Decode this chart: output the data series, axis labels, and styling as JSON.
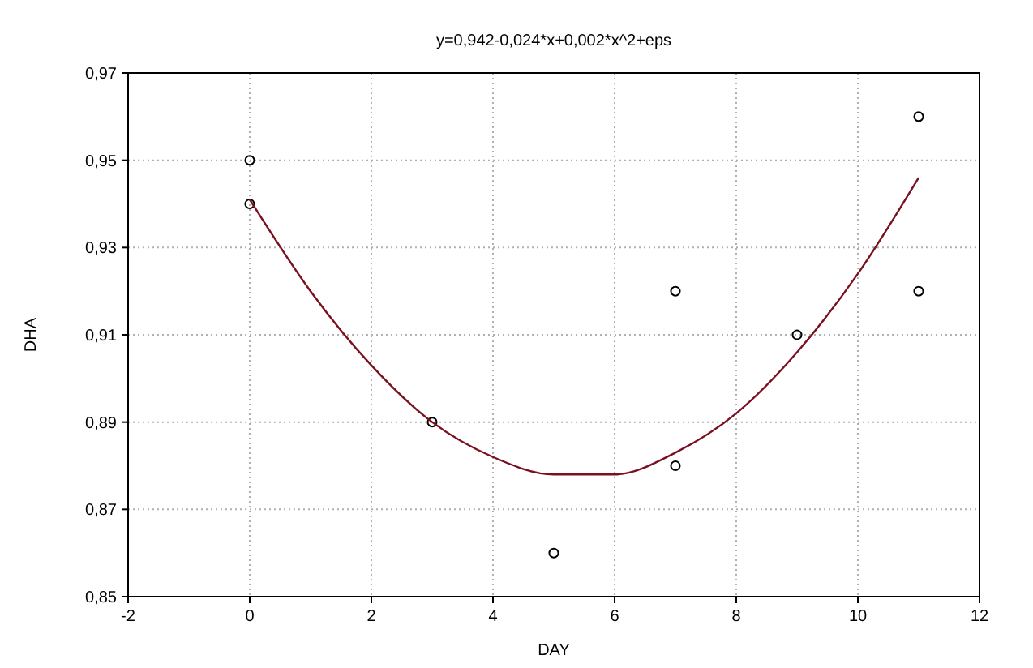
{
  "chart_data": {
    "type": "scatter",
    "title": "y=0,942-0,024*x+0,002*x^2+eps",
    "xlabel": "DAY",
    "ylabel": "DHA",
    "xlim": [
      -2,
      12
    ],
    "xticks": [
      -2,
      0,
      2,
      4,
      6,
      8,
      10,
      12
    ],
    "ylim": [
      0.85,
      0.97
    ],
    "yticks": [
      {
        "value": 0.85,
        "label": "0,85"
      },
      {
        "value": 0.87,
        "label": "0,87"
      },
      {
        "value": 0.89,
        "label": "0,89"
      },
      {
        "value": 0.91,
        "label": "0,91"
      },
      {
        "value": 0.93,
        "label": "0,93"
      },
      {
        "value": 0.95,
        "label": "0,95"
      },
      {
        "value": 0.97,
        "label": "0,97"
      }
    ],
    "grid": true,
    "series": [
      {
        "color": "#000000",
        "marker": "circle",
        "x": [
          0,
          0,
          3,
          5,
          7,
          7,
          9,
          11,
          11
        ],
        "values": [
          0.95,
          0.94,
          0.89,
          0.86,
          0.92,
          0.88,
          0.91,
          0.96,
          0.92
        ]
      },
      {
        "type": "line",
        "color": "#7a1020",
        "marker": "none",
        "line_style": "solid",
        "x": [
          0,
          1,
          2,
          3,
          4,
          5,
          6,
          7,
          8,
          9,
          10,
          11
        ],
        "values": [
          0.941,
          0.92,
          0.903,
          0.89,
          0.882,
          0.878,
          0.878,
          0.883,
          0.892,
          0.906,
          0.924,
          0.946
        ]
      }
    ]
  }
}
